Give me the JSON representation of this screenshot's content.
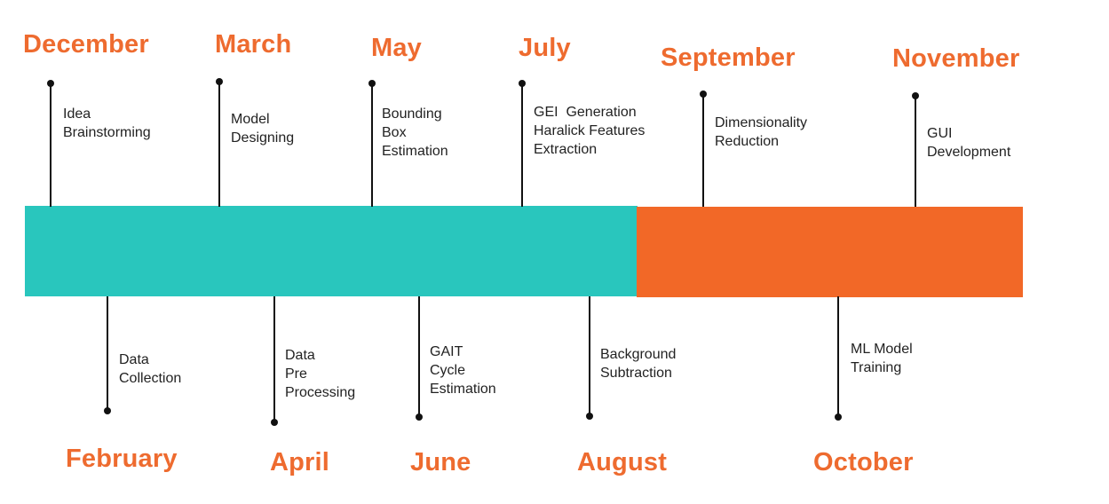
{
  "colors": {
    "teal": "#29c6bd",
    "orange": "#f26827",
    "month_text": "#ee6b2f",
    "stem": "#111111",
    "text": "#222222"
  },
  "top_milestones": [
    {
      "month": "December",
      "lines": [
        "Idea",
        "Brainstorming"
      ]
    },
    {
      "month": "March",
      "lines": [
        "Model",
        "Designing"
      ]
    },
    {
      "month": "May",
      "lines": [
        "Bounding",
        "Box",
        "Estimation"
      ]
    },
    {
      "month": "July",
      "lines": [
        "GEI  Generation",
        "Haralick Features",
        "Extraction"
      ]
    },
    {
      "month": "September",
      "lines": [
        "Dimensionality",
        "Reduction"
      ]
    },
    {
      "month": "November",
      "lines": [
        "GUI",
        "Development"
      ]
    }
  ],
  "bottom_milestones": [
    {
      "month": "February",
      "lines": [
        "Data",
        "Collection"
      ]
    },
    {
      "month": "April",
      "lines": [
        "Data",
        "Pre",
        "Processing"
      ]
    },
    {
      "month": "June",
      "lines": [
        "GAIT",
        "Cycle",
        "Estimation"
      ]
    },
    {
      "month": "August",
      "lines": [
        "Background",
        "Subtraction"
      ]
    },
    {
      "month": "October",
      "lines": [
        "ML Model",
        "Training"
      ]
    }
  ]
}
